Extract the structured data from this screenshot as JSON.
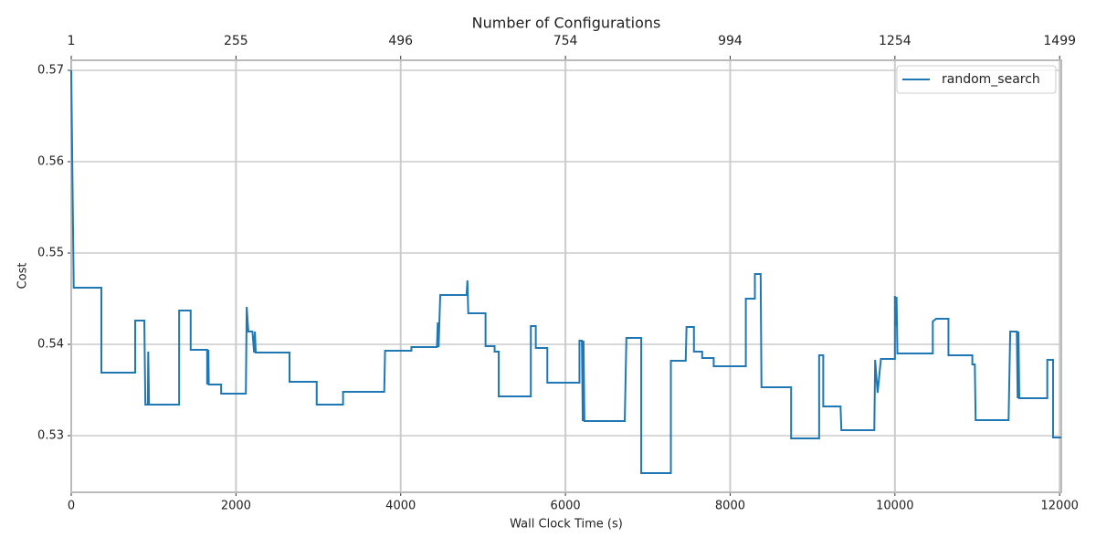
{
  "chart_data": {
    "type": "line",
    "x2label": "Number of Configurations",
    "xlabel": "Wall Clock Time (s)",
    "ylabel": "Cost",
    "x": [
      0,
      30,
      366,
      366,
      776,
      776,
      887,
      900,
      930,
      935,
      945,
      1310,
      1310,
      1450,
      1450,
      1650,
      1650,
      1665,
      1670,
      1820,
      1820,
      2120,
      2130,
      2150,
      2200,
      2220,
      2230,
      2240,
      2650,
      2650,
      2980,
      2980,
      3300,
      3300,
      3800,
      3810,
      4130,
      4130,
      4440,
      4450,
      4460,
      4480,
      4800,
      4810,
      4820,
      5030,
      5030,
      5140,
      5140,
      5190,
      5190,
      5580,
      5580,
      5640,
      5640,
      5780,
      5780,
      6170,
      6170,
      6200,
      6210,
      6220,
      6230,
      6720,
      6740,
      6920,
      6920,
      7280,
      7280,
      7460,
      7470,
      7560,
      7560,
      7660,
      7660,
      7800,
      7800,
      8190,
      8190,
      8300,
      8300,
      8370,
      8380,
      8740,
      8740,
      9080,
      9080,
      9130,
      9130,
      9340,
      9350,
      9750,
      9760,
      9790,
      9830,
      10000,
      10000,
      10010,
      10020,
      10030,
      10460,
      10460,
      10500,
      10650,
      10650,
      10940,
      10940,
      10970,
      10980,
      11380,
      11400,
      11480,
      11490,
      11500,
      11510,
      11850,
      11850,
      11920,
      11920,
      12020
    ],
    "series": [
      {
        "name": "random_search",
        "color": "#1f77b4",
        "values": [
          0.57,
          0.5462,
          0.5462,
          0.5369,
          0.5369,
          0.5426,
          0.5426,
          0.5334,
          0.5334,
          0.5392,
          0.5334,
          0.5334,
          0.5437,
          0.5437,
          0.5394,
          0.5394,
          0.5356,
          0.5394,
          0.5356,
          0.5356,
          0.5346,
          0.5346,
          0.5441,
          0.5414,
          0.5414,
          0.5391,
          0.5414,
          0.5391,
          0.5391,
          0.5359,
          0.5359,
          0.5334,
          0.5334,
          0.5348,
          0.5348,
          0.5393,
          0.5393,
          0.5397,
          0.5397,
          0.5424,
          0.5397,
          0.5454,
          0.5454,
          0.547,
          0.5434,
          0.5434,
          0.5398,
          0.5398,
          0.5392,
          0.5392,
          0.5343,
          0.5343,
          0.542,
          0.542,
          0.5396,
          0.5396,
          0.5358,
          0.5358,
          0.5404,
          0.5404,
          0.5316,
          0.5404,
          0.5316,
          0.5316,
          0.5407,
          0.5407,
          0.5259,
          0.5259,
          0.5382,
          0.5382,
          0.5419,
          0.5419,
          0.5392,
          0.5392,
          0.5385,
          0.5385,
          0.5376,
          0.5376,
          0.545,
          0.545,
          0.5477,
          0.5477,
          0.5353,
          0.5353,
          0.5297,
          0.5297,
          0.5388,
          0.5388,
          0.5332,
          0.5332,
          0.5306,
          0.5306,
          0.5383,
          0.5347,
          0.5384,
          0.5384,
          0.5453,
          0.542,
          0.5452,
          0.539,
          0.539,
          0.5425,
          0.5428,
          0.5428,
          0.5388,
          0.5388,
          0.5378,
          0.5378,
          0.5317,
          0.5317,
          0.5414,
          0.5414,
          0.5341,
          0.5414,
          0.5341,
          0.5341,
          0.5383,
          0.5383,
          0.5298,
          0.5298
        ]
      }
    ],
    "xlim": [
      0,
      12020
    ],
    "ylim": [
      0.5238,
      0.5711
    ],
    "xticks": [
      0,
      2000,
      4000,
      6000,
      8000,
      10000,
      12000
    ],
    "yticks": [
      0.53,
      0.54,
      0.55,
      0.56,
      0.57
    ],
    "x2ticks": [
      {
        "value": 0,
        "label": "1"
      },
      {
        "value": 2000,
        "label": "255"
      },
      {
        "value": 4000,
        "label": "496"
      },
      {
        "value": 6000,
        "label": "754"
      },
      {
        "value": 8000,
        "label": "994"
      },
      {
        "value": 10000,
        "label": "1254"
      },
      {
        "value": 12000,
        "label": "1499"
      }
    ],
    "grid": true,
    "legend": "upper right"
  }
}
